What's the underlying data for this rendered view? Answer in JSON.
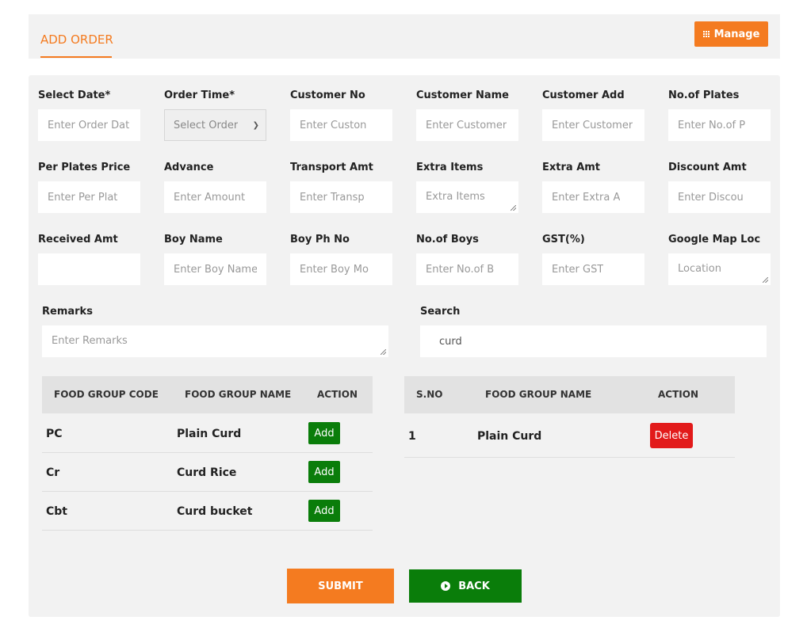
{
  "header": {
    "title": "ADD ORDER",
    "manage_label": "Manage"
  },
  "fields": {
    "select_date": {
      "label": "Select Date*",
      "placeholder": "Enter Order Dat"
    },
    "order_time": {
      "label": "Order Time*",
      "placeholder": "Select Order"
    },
    "customer_no": {
      "label": "Customer No",
      "placeholder": "Enter Custon"
    },
    "customer_name": {
      "label": "Customer Name",
      "placeholder": "Enter Customer"
    },
    "customer_add": {
      "label": "Customer Add",
      "placeholder": "Enter Customer"
    },
    "no_of_plates": {
      "label": "No.of Plates",
      "placeholder": "Enter No.of P"
    },
    "per_plates_price": {
      "label": "Per Plates Price",
      "placeholder": "Enter Per Plat"
    },
    "advance": {
      "label": "Advance",
      "placeholder": "Enter Amount"
    },
    "transport_amt": {
      "label": "Transport Amt",
      "placeholder": "Enter Transp"
    },
    "extra_items": {
      "label": "Extra Items",
      "placeholder": "Extra Items"
    },
    "extra_amt": {
      "label": "Extra Amt",
      "placeholder": "Enter Extra A"
    },
    "discount_amt": {
      "label": "Discount Amt",
      "placeholder": "Enter Discou"
    },
    "received_amt": {
      "label": "Received Amt",
      "placeholder": ""
    },
    "boy_name": {
      "label": "Boy Name",
      "placeholder": "Enter Boy Name"
    },
    "boy_ph_no": {
      "label": "Boy Ph No",
      "placeholder": "Enter Boy Mo"
    },
    "no_of_boys": {
      "label": "No.of Boys",
      "placeholder": "Enter No.of B"
    },
    "gst": {
      "label": "GST(%)",
      "placeholder": "Enter GST"
    },
    "google_map_loc": {
      "label": "Google Map Loc",
      "placeholder": "Location"
    },
    "remarks": {
      "label": "Remarks",
      "placeholder": "Enter Remarks"
    },
    "search": {
      "label": "Search",
      "value": "curd"
    }
  },
  "food_table": {
    "headers": [
      "FOOD GROUP CODE",
      "FOOD GROUP NAME",
      "ACTION"
    ],
    "rows": [
      {
        "code": "PC",
        "name": "Plain Curd",
        "action": "Add"
      },
      {
        "code": "Cr",
        "name": "Curd Rice",
        "action": "Add"
      },
      {
        "code": "Cbt",
        "name": "Curd bucket",
        "action": "Add"
      }
    ]
  },
  "selected_table": {
    "headers": [
      "S.NO",
      "FOOD GROUP NAME",
      "ACTION"
    ],
    "rows": [
      {
        "sno": "1",
        "name": "Plain Curd",
        "action": "Delete"
      }
    ]
  },
  "buttons": {
    "submit": "SUBMIT",
    "back": "BACK"
  },
  "colors": {
    "accent": "#f47b20",
    "success": "#0a7d0a",
    "danger": "#e21a1a"
  }
}
